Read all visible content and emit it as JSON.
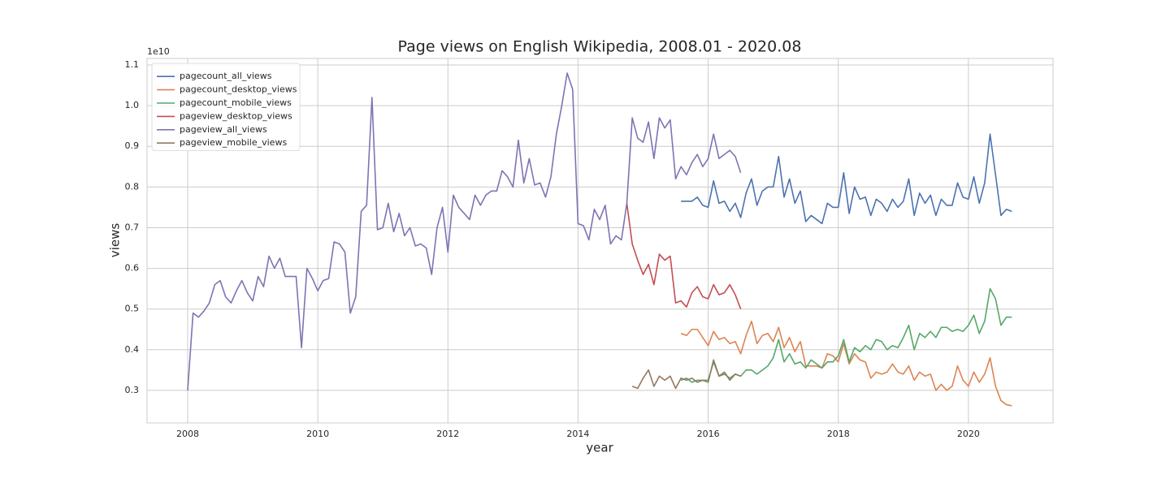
{
  "chart_data": {
    "type": "line",
    "title": "Page views on English Wikipedia, 2008.01 - 2020.08",
    "x_label": "year",
    "y_label": "views",
    "y_offset_label": "1e10",
    "xlim": [
      2007.376,
      2021.3
    ],
    "xticks": [
      2008,
      2010,
      2012,
      2014,
      2016,
      2018,
      2020
    ],
    "ylim": [
      0.22,
      1.116
    ],
    "yticks": [
      0.3,
      0.4,
      0.5,
      0.6,
      0.7,
      0.8,
      0.9,
      {
        "value": 1,
        "label": "1.0"
      },
      1.1
    ],
    "grid": true,
    "legend": "upper left",
    "x": [
      2008,
      2008.083,
      2008.167,
      2008.25,
      2008.333,
      2008.417,
      2008.5,
      2008.583,
      2008.667,
      2008.75,
      2008.833,
      2008.917,
      2009,
      2009.083,
      2009.167,
      2009.25,
      2009.333,
      2009.417,
      2009.5,
      2009.583,
      2009.667,
      2009.75,
      2009.833,
      2009.917,
      2010,
      2010.083,
      2010.167,
      2010.25,
      2010.333,
      2010.417,
      2010.5,
      2010.583,
      2010.667,
      2010.75,
      2010.833,
      2010.917,
      2011,
      2011.083,
      2011.167,
      2011.25,
      2011.333,
      2011.417,
      2011.5,
      2011.583,
      2011.667,
      2011.75,
      2011.833,
      2011.917,
      2012,
      2012.083,
      2012.167,
      2012.25,
      2012.333,
      2012.417,
      2012.5,
      2012.583,
      2012.667,
      2012.75,
      2012.833,
      2012.917,
      2013,
      2013.083,
      2013.167,
      2013.25,
      2013.333,
      2013.417,
      2013.5,
      2013.583,
      2013.667,
      2013.75,
      2013.833,
      2013.917,
      2014,
      2014.083,
      2014.167,
      2014.25,
      2014.333,
      2014.417,
      2014.5,
      2014.583,
      2014.667,
      2014.75,
      2014.833,
      2014.917,
      2015,
      2015.083,
      2015.167,
      2015.25,
      2015.333,
      2015.417,
      2015.5,
      2015.583,
      2015.667,
      2015.75,
      2015.833,
      2015.917,
      2016,
      2016.083,
      2016.167,
      2016.25,
      2016.333,
      2016.417,
      2016.5,
      2016.583,
      2016.667,
      2016.75,
      2016.833,
      2016.917,
      2017,
      2017.083,
      2017.167,
      2017.25,
      2017.333,
      2017.417,
      2017.5,
      2017.583,
      2017.667,
      2017.75,
      2017.833,
      2017.917,
      2018,
      2018.083,
      2018.167,
      2018.25,
      2018.333,
      2018.417,
      2018.5,
      2018.583,
      2018.667,
      2018.75,
      2018.833,
      2018.917,
      2019,
      2019.083,
      2019.167,
      2019.25,
      2019.333,
      2019.417,
      2019.5,
      2019.583,
      2019.667,
      2019.75,
      2019.833,
      2019.917,
      2020,
      2020.083,
      2020.167,
      2020.25,
      2020.333,
      2020.417,
      2020.5,
      2020.583,
      2020.667
    ],
    "series": [
      {
        "name": "pagecount_all_views",
        "color": "#4c72b0",
        "values": [
          null,
          null,
          null,
          null,
          null,
          null,
          null,
          null,
          null,
          null,
          null,
          null,
          null,
          null,
          null,
          null,
          null,
          null,
          null,
          null,
          null,
          null,
          null,
          null,
          null,
          null,
          null,
          null,
          null,
          null,
          null,
          null,
          null,
          null,
          null,
          null,
          null,
          null,
          null,
          null,
          null,
          null,
          null,
          null,
          null,
          null,
          null,
          null,
          null,
          null,
          null,
          null,
          null,
          null,
          null,
          null,
          null,
          null,
          null,
          null,
          null,
          null,
          null,
          null,
          null,
          null,
          null,
          null,
          null,
          null,
          null,
          null,
          null,
          null,
          null,
          null,
          null,
          null,
          null,
          null,
          null,
          null,
          null,
          null,
          null,
          null,
          null,
          null,
          null,
          null,
          null,
          0.765,
          0.765,
          0.765,
          0.775,
          0.755,
          0.75,
          0.815,
          0.76,
          0.765,
          0.74,
          0.76,
          0.725,
          0.785,
          0.82,
          0.755,
          0.79,
          0.8,
          0.8,
          0.875,
          0.775,
          0.82,
          0.76,
          0.79,
          0.715,
          0.73,
          0.72,
          0.71,
          0.76,
          0.75,
          0.75,
          0.835,
          0.735,
          0.8,
          0.77,
          0.775,
          0.73,
          0.77,
          0.76,
          0.74,
          0.77,
          0.75,
          0.765,
          0.82,
          0.73,
          0.785,
          0.76,
          0.78,
          0.73,
          0.77,
          0.755,
          0.755,
          0.81,
          0.775,
          0.77,
          0.825,
          0.76,
          0.81,
          0.93,
          0.83,
          0.73,
          0.745,
          0.74
        ]
      },
      {
        "name": "pagecount_desktop_views",
        "color": "#dd8452",
        "values": [
          null,
          null,
          null,
          null,
          null,
          null,
          null,
          null,
          null,
          null,
          null,
          null,
          null,
          null,
          null,
          null,
          null,
          null,
          null,
          null,
          null,
          null,
          null,
          null,
          null,
          null,
          null,
          null,
          null,
          null,
          null,
          null,
          null,
          null,
          null,
          null,
          null,
          null,
          null,
          null,
          null,
          null,
          null,
          null,
          null,
          null,
          null,
          null,
          null,
          null,
          null,
          null,
          null,
          null,
          null,
          null,
          null,
          null,
          null,
          null,
          null,
          null,
          null,
          null,
          null,
          null,
          null,
          null,
          null,
          null,
          null,
          null,
          null,
          null,
          null,
          null,
          null,
          null,
          null,
          null,
          null,
          null,
          null,
          null,
          null,
          null,
          null,
          null,
          null,
          null,
          null,
          0.44,
          0.435,
          0.45,
          0.45,
          0.43,
          0.41,
          0.445,
          0.425,
          0.43,
          0.415,
          0.42,
          0.39,
          0.435,
          0.47,
          0.415,
          0.435,
          0.44,
          0.42,
          0.455,
          0.405,
          0.43,
          0.395,
          0.42,
          0.36,
          0.36,
          0.36,
          0.355,
          0.39,
          0.385,
          0.37,
          0.415,
          0.365,
          0.39,
          0.375,
          0.37,
          0.33,
          0.345,
          0.34,
          0.345,
          0.365,
          0.345,
          0.34,
          0.36,
          0.325,
          0.345,
          0.335,
          0.34,
          0.3,
          0.315,
          0.3,
          0.31,
          0.36,
          0.325,
          0.31,
          0.345,
          0.32,
          0.34,
          0.38,
          0.31,
          0.275,
          0.265,
          0.262
        ]
      },
      {
        "name": "pagecount_mobile_views",
        "color": "#55a868",
        "values": [
          null,
          null,
          null,
          null,
          null,
          null,
          null,
          null,
          null,
          null,
          null,
          null,
          null,
          null,
          null,
          null,
          null,
          null,
          null,
          null,
          null,
          null,
          null,
          null,
          null,
          null,
          null,
          null,
          null,
          null,
          null,
          null,
          null,
          null,
          null,
          null,
          null,
          null,
          null,
          null,
          null,
          null,
          null,
          null,
          null,
          null,
          null,
          null,
          null,
          null,
          null,
          null,
          null,
          null,
          null,
          null,
          null,
          null,
          null,
          null,
          null,
          null,
          null,
          null,
          null,
          null,
          null,
          null,
          null,
          null,
          null,
          null,
          null,
          null,
          null,
          null,
          null,
          null,
          null,
          null,
          null,
          null,
          null,
          null,
          null,
          null,
          null,
          null,
          null,
          null,
          null,
          0.325,
          0.33,
          0.32,
          0.325,
          0.325,
          0.325,
          0.37,
          0.335,
          0.34,
          0.33,
          0.34,
          0.335,
          0.35,
          0.35,
          0.34,
          0.35,
          0.36,
          0.38,
          0.425,
          0.37,
          0.39,
          0.365,
          0.37,
          0.355,
          0.375,
          0.365,
          0.355,
          0.37,
          0.37,
          0.385,
          0.425,
          0.37,
          0.405,
          0.395,
          0.41,
          0.4,
          0.425,
          0.42,
          0.4,
          0.41,
          0.405,
          0.43,
          0.46,
          0.4,
          0.44,
          0.43,
          0.445,
          0.43,
          0.455,
          0.455,
          0.445,
          0.45,
          0.445,
          0.46,
          0.485,
          0.44,
          0.47,
          0.55,
          0.525,
          0.46,
          0.48,
          0.48
        ]
      },
      {
        "name": "pageview_desktop_views",
        "color": "#c44e52",
        "values": [
          null,
          null,
          null,
          null,
          null,
          null,
          null,
          null,
          null,
          null,
          null,
          null,
          null,
          null,
          null,
          null,
          null,
          null,
          null,
          null,
          null,
          null,
          null,
          null,
          null,
          null,
          null,
          null,
          null,
          null,
          null,
          null,
          null,
          null,
          null,
          null,
          null,
          null,
          null,
          null,
          null,
          null,
          null,
          null,
          null,
          null,
          null,
          null,
          null,
          null,
          null,
          null,
          null,
          null,
          null,
          null,
          null,
          null,
          null,
          null,
          null,
          null,
          null,
          null,
          null,
          null,
          null,
          null,
          null,
          null,
          null,
          null,
          null,
          null,
          null,
          null,
          null,
          null,
          null,
          null,
          null,
          0.76,
          0.66,
          0.62,
          0.585,
          0.61,
          0.56,
          0.635,
          0.62,
          0.63,
          0.515,
          0.52,
          0.505,
          0.54,
          0.555,
          0.53,
          0.525,
          0.56,
          0.535,
          0.54,
          0.56,
          0.535,
          0.5,
          null,
          null,
          null,
          null,
          null,
          null,
          null,
          null,
          null,
          null,
          null,
          null,
          null,
          null,
          null,
          null,
          null,
          null,
          null,
          null,
          null,
          null,
          null,
          null,
          null,
          null,
          null,
          null,
          null,
          null,
          null,
          null,
          null,
          null,
          null,
          null,
          null,
          null,
          null,
          null,
          null,
          null,
          null,
          null,
          null,
          null,
          null,
          null,
          null,
          null
        ]
      },
      {
        "name": "pageview_all_views",
        "color": "#8172b3",
        "values": [
          0.3,
          0.49,
          0.48,
          0.495,
          0.515,
          0.56,
          0.57,
          0.53,
          0.515,
          0.545,
          0.57,
          0.54,
          0.52,
          0.58,
          0.555,
          0.63,
          0.6,
          0.625,
          0.58,
          0.58,
          0.58,
          0.405,
          0.6,
          0.575,
          0.545,
          0.57,
          0.575,
          0.665,
          0.66,
          0.64,
          0.49,
          0.53,
          0.74,
          0.755,
          1.02,
          0.695,
          0.7,
          0.76,
          0.69,
          0.735,
          0.68,
          0.7,
          0.655,
          0.66,
          0.65,
          0.585,
          0.7,
          0.75,
          0.64,
          0.78,
          0.75,
          0.735,
          0.72,
          0.78,
          0.755,
          0.78,
          0.79,
          0.79,
          0.84,
          0.825,
          0.8,
          0.915,
          0.81,
          0.87,
          0.805,
          0.81,
          0.775,
          0.825,
          0.93,
          1.0,
          1.08,
          1.04,
          0.71,
          0.705,
          0.67,
          0.745,
          0.72,
          0.755,
          0.66,
          0.68,
          0.67,
          0.76,
          0.97,
          0.92,
          0.91,
          0.96,
          0.87,
          0.97,
          0.945,
          0.965,
          0.82,
          0.85,
          0.83,
          0.86,
          0.88,
          0.85,
          0.87,
          0.93,
          0.87,
          0.88,
          0.89,
          0.875,
          0.835,
          null,
          null,
          null,
          null,
          null,
          null,
          null,
          null,
          null,
          null,
          null,
          null,
          null,
          null,
          null,
          null,
          null,
          null,
          null,
          null,
          null,
          null,
          null,
          null,
          null,
          null,
          null,
          null,
          null,
          null,
          null,
          null,
          null,
          null,
          null,
          null,
          null,
          null,
          null,
          null,
          null,
          null,
          null,
          null,
          null,
          null,
          null,
          null,
          null,
          null
        ]
      },
      {
        "name": "pageview_mobile_views",
        "color": "#937860",
        "values": [
          null,
          null,
          null,
          null,
          null,
          null,
          null,
          null,
          null,
          null,
          null,
          null,
          null,
          null,
          null,
          null,
          null,
          null,
          null,
          null,
          null,
          null,
          null,
          null,
          null,
          null,
          null,
          null,
          null,
          null,
          null,
          null,
          null,
          null,
          null,
          null,
          null,
          null,
          null,
          null,
          null,
          null,
          null,
          null,
          null,
          null,
          null,
          null,
          null,
          null,
          null,
          null,
          null,
          null,
          null,
          null,
          null,
          null,
          null,
          null,
          null,
          null,
          null,
          null,
          null,
          null,
          null,
          null,
          null,
          null,
          null,
          null,
          null,
          null,
          null,
          null,
          null,
          null,
          null,
          null,
          null,
          null,
          0.31,
          0.305,
          0.33,
          0.35,
          0.31,
          0.335,
          0.325,
          0.335,
          0.305,
          0.33,
          0.325,
          0.33,
          0.32,
          0.325,
          0.32,
          0.375,
          0.335,
          0.345,
          0.325,
          0.34,
          0.335,
          null,
          null,
          null,
          null,
          null,
          null,
          null,
          null,
          null,
          null,
          null,
          null,
          null,
          null,
          null,
          null,
          null,
          null,
          null,
          null,
          null,
          null,
          null,
          null,
          null,
          null,
          null,
          null,
          null,
          null,
          null,
          null,
          null,
          null,
          null,
          null,
          null,
          null,
          null,
          null,
          null,
          null,
          null,
          null,
          null,
          null,
          null,
          null,
          null,
          null
        ]
      }
    ]
  }
}
